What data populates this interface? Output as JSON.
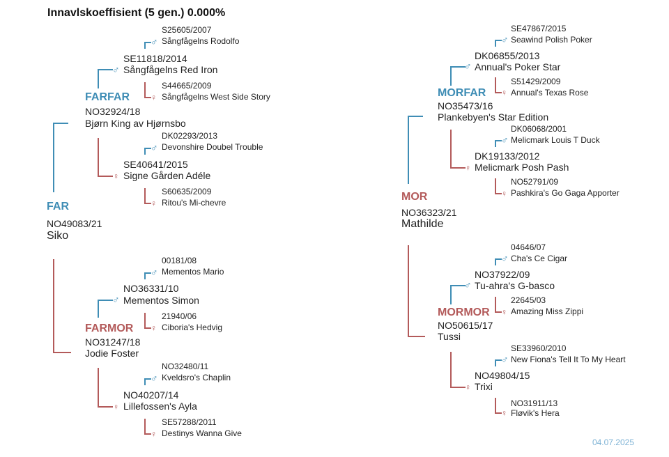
{
  "title": "Innavlskoeffisient (5 gen.) 0.000%",
  "date": "04.07.2025",
  "symbols": {
    "male": "♂",
    "female": "♀"
  },
  "colors": {
    "male": "#3f8db5",
    "female": "#b35a5a"
  },
  "sire": {
    "role": "FAR",
    "reg": "NO49083/21",
    "name": "Siko"
  },
  "dam": {
    "role": "MOR",
    "reg": "NO36323/21",
    "name": "Mathilde"
  },
  "farfar": {
    "role": "FARFAR",
    "reg": "NO32924/18",
    "name": "Bjørn King av Hjørnsbo"
  },
  "farmor": {
    "role": "FARMOR",
    "reg": "NO31247/18",
    "name": "Jodie Foster"
  },
  "morfar": {
    "role": "MORFAR",
    "reg": "NO35473/16",
    "name": "Plankebyen's Star Edition"
  },
  "mormor": {
    "role": "MORMOR",
    "reg": "NO50615/17",
    "name": "Tussi"
  },
  "g3": {
    "ff_sire": {
      "reg": "SE11818/2014",
      "name": "Sångfågelns Red Iron"
    },
    "ff_dam": {
      "reg": "SE40641/2015",
      "name": "Signe Gården Adéle"
    },
    "fm_sire": {
      "reg": "NO36331/10",
      "name": "Mementos Simon"
    },
    "fm_dam": {
      "reg": "NO40207/14",
      "name": "Lillefossen's Ayla"
    },
    "mf_sire": {
      "reg": "DK06855/2013",
      "name": "Annual's Poker Star"
    },
    "mf_dam": {
      "reg": "DK19133/2012",
      "name": "Melicmark Posh Pash"
    },
    "mm_sire": {
      "reg": "NO37922/09",
      "name": "Tu-ahra's G-basco"
    },
    "mm_dam": {
      "reg": "NO49804/15",
      "name": "Trixi"
    }
  },
  "g4": {
    "a": {
      "reg": "S25605/2007",
      "name": "Sångfågelns Rodolfo"
    },
    "b": {
      "reg": "S44665/2009",
      "name": "Sångfågelns West Side Story"
    },
    "c": {
      "reg": "DK02293/2013",
      "name": "Devonshire Doubel Trouble"
    },
    "d": {
      "reg": "S60635/2009",
      "name": "Ritou's Mi-chevre"
    },
    "e": {
      "reg": "00181/08",
      "name": "Mementos Mario"
    },
    "f": {
      "reg": "21940/06",
      "name": "Ciboria's Hedvig"
    },
    "g": {
      "reg": "NO32480/11",
      "name": "Kveldsro's Chaplin"
    },
    "h": {
      "reg": "SE57288/2011",
      "name": "Destinys Wanna Give"
    },
    "i": {
      "reg": "SE47867/2015",
      "name": "Seawind Polish Poker"
    },
    "j": {
      "reg": "S51429/2009",
      "name": "Annual's Texas Rose"
    },
    "k": {
      "reg": "DK06068/2001",
      "name": "Melicmark Louis T Duck"
    },
    "l": {
      "reg": "NO52791/09",
      "name": "Pashkira's Go Gaga Apporter"
    },
    "m": {
      "reg": "04646/07",
      "name": "Cha's Ce Cigar"
    },
    "n": {
      "reg": "22645/03",
      "name": "Amazing Miss Zippi"
    },
    "o": {
      "reg": "SE33960/2010",
      "name": "New Fiona's Tell It To My Heart"
    },
    "p": {
      "reg": "NO31911/13",
      "name": "Fløvik's Hera"
    }
  }
}
